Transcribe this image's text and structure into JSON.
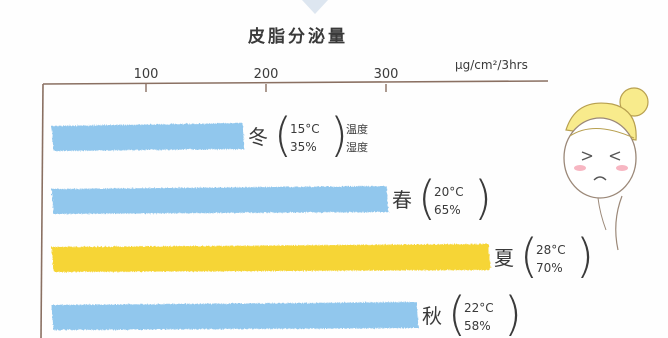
{
  "chart_data": {
    "type": "bar",
    "orientation": "horizontal",
    "title": "皮脂分泌量",
    "unit": "μg/cm²/3hrs",
    "x_ticks": [
      100,
      200,
      300
    ],
    "xlim": [
      0,
      400
    ],
    "categories": [
      "冬",
      "春",
      "夏",
      "秋"
    ],
    "values": [
      180,
      300,
      385,
      325
    ],
    "conditions": [
      {
        "season": "冬",
        "temperature": "15°C",
        "humidity": "35%",
        "temperature_label": "温度",
        "humidity_label": "湿度"
      },
      {
        "season": "春",
        "temperature": "20°C",
        "humidity": "65%"
      },
      {
        "season": "夏",
        "temperature": "28°C",
        "humidity": "70%"
      },
      {
        "season": "秋",
        "temperature": "22°C",
        "humidity": "58%"
      }
    ],
    "colors": [
      "#8cc4ec",
      "#8cc4ec",
      "#f6d32c",
      "#8cc4ec"
    ],
    "grid": false
  },
  "illustration": {
    "icon": "sweating-face-icon"
  }
}
